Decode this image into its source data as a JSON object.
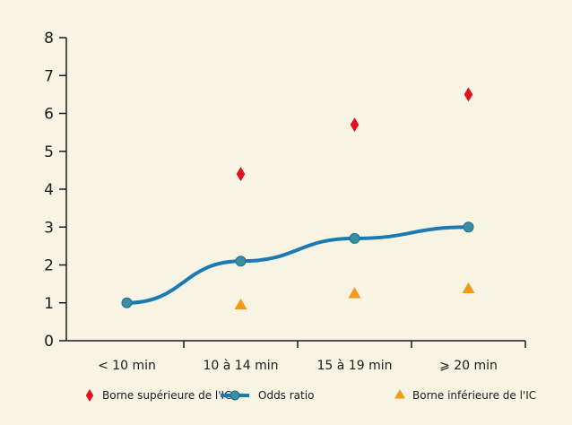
{
  "chart_data": {
    "type": "line",
    "categories": [
      "< 10 min",
      "10 à 14 min",
      "15 à 19 min",
      "⩾ 20 min"
    ],
    "ylim": [
      0,
      8
    ],
    "yticks": [
      0,
      1,
      2,
      3,
      4,
      5,
      6,
      7,
      8
    ],
    "grid": false,
    "legend_position": "bottom",
    "series": [
      {
        "name": "Borne supérieure de l'IC",
        "marker": "diamond",
        "color": "#e3101f",
        "values": [
          null,
          4.4,
          5.7,
          6.5
        ]
      },
      {
        "name": "Odds ratio",
        "marker": "circle-line",
        "color": "#1a7ab3",
        "values": [
          1.0,
          2.1,
          2.7,
          3.0
        ]
      },
      {
        "name": "Borne inférieure de l'IC",
        "marker": "triangle",
        "color": "#f39a1b",
        "values": [
          null,
          0.95,
          1.25,
          1.38
        ]
      }
    ]
  }
}
